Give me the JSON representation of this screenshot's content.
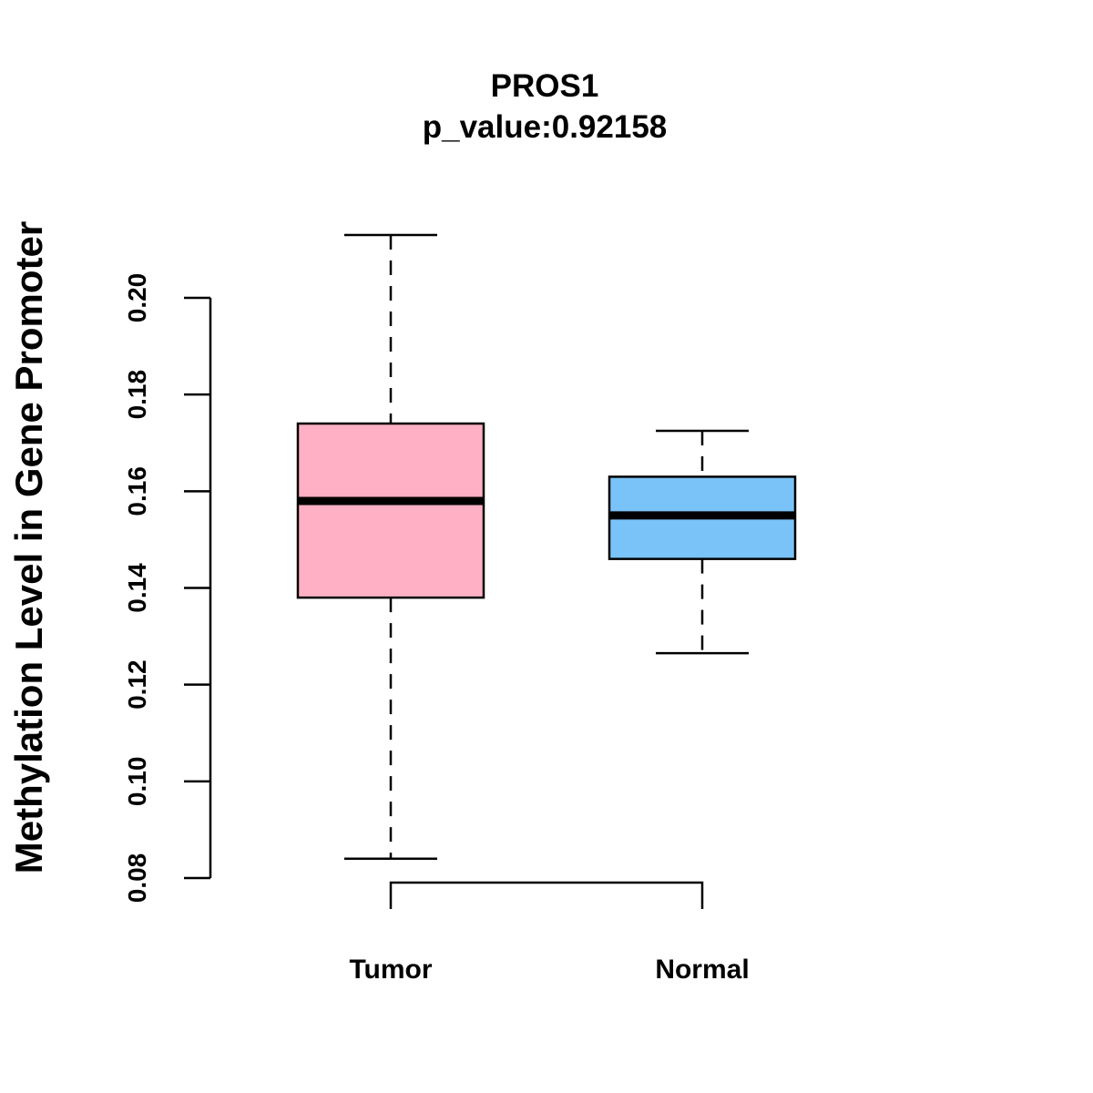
{
  "chart_data": {
    "type": "boxplot",
    "title": "PROS1",
    "subtitle": "p_value:0.92158",
    "xlabel": "",
    "ylabel": "Methylation Level in Gene Promoter",
    "ylim": [
      0.08,
      0.2
    ],
    "yticks": [
      "0.08",
      "0.10",
      "0.12",
      "0.14",
      "0.16",
      "0.18",
      "0.20"
    ],
    "grid": false,
    "categories": [
      "Tumor",
      "Normal"
    ],
    "series": [
      {
        "name": "Tumor",
        "color": "#FFB0C4",
        "whisker_low": 0.084,
        "q1": 0.138,
        "median": 0.158,
        "q3": 0.174,
        "whisker_high": 0.213
      },
      {
        "name": "Normal",
        "color": "#7AC3F8",
        "whisker_low": 0.1265,
        "q1": 0.146,
        "median": 0.155,
        "q3": 0.163,
        "whisker_high": 0.1725
      }
    ]
  }
}
